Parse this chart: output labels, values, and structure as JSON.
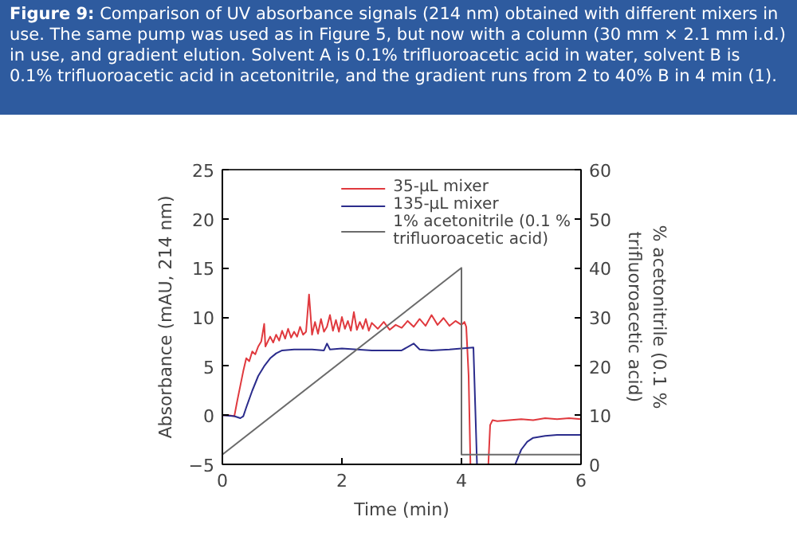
{
  "chart_data": {
    "type": "line",
    "title": "Figure 9: Comparison of UV absorbance signals (214 nm) obtained with different mixers in use. The same pump was used as in Figure 5, but now with a column (30 mm × 2.1 mm i.d.) in use, and gradient elution. Solvent A is 0.1% trifluoroacetic acid in water, solvent B is 0.1% trifluoroacetic acid in acetonitrile, and the gradient runs from 2 to 40% B in 4 min (1).",
    "xlabel": "Time (min)",
    "ylabel": "Absorbance (mAU, 214 nm)",
    "y2label": "% acetonitrile (0.1 %\ntrifluoroacetic acid)",
    "xlim": [
      0,
      6
    ],
    "xticks": [
      0,
      2,
      4,
      6
    ],
    "ylim": [
      -5,
      25
    ],
    "yticks": [
      -5,
      0,
      5,
      10,
      15,
      20,
      25
    ],
    "y2lim": [
      0,
      60
    ],
    "y2ticks": [
      0,
      10,
      20,
      30,
      40,
      50,
      60
    ],
    "grid": false,
    "legend": "top right",
    "line_style": "solid",
    "series": [
      {
        "name": "35-μL mixer",
        "color": "#e0393e",
        "x": [
          0,
          0.1,
          0.2,
          0.25,
          0.3,
          0.35,
          0.4,
          0.45,
          0.5,
          0.55,
          0.6,
          0.65,
          0.7,
          0.72,
          0.8,
          0.85,
          0.9,
          0.95,
          1.0,
          1.05,
          1.1,
          1.15,
          1.2,
          1.25,
          1.3,
          1.35,
          1.4,
          1.45,
          1.5,
          1.55,
          1.6,
          1.65,
          1.7,
          1.75,
          1.8,
          1.85,
          1.9,
          1.95,
          2.0,
          2.05,
          2.1,
          2.15,
          2.2,
          2.25,
          2.3,
          2.35,
          2.4,
          2.45,
          2.5,
          2.6,
          2.7,
          2.8,
          2.9,
          3.0,
          3.1,
          3.2,
          3.3,
          3.4,
          3.5,
          3.6,
          3.7,
          3.8,
          3.9,
          4.0,
          4.05,
          4.08,
          4.12,
          4.15,
          4.45,
          4.48,
          4.52,
          4.6,
          4.8,
          5.0,
          5.2,
          5.4,
          5.6,
          5.8,
          6.0
        ],
        "values": [
          0,
          0,
          -0.1,
          1.5,
          3,
          4.5,
          5.8,
          5.5,
          6.5,
          6.2,
          7,
          7.5,
          9.3,
          7,
          8,
          7.4,
          8.2,
          7.6,
          8.6,
          7.8,
          8.8,
          7.9,
          8.5,
          8,
          9,
          8.2,
          8.5,
          12.3,
          8.2,
          9.5,
          8.3,
          9.8,
          8.5,
          9,
          10.2,
          8.6,
          9.7,
          8.5,
          10,
          8.8,
          9.6,
          8.6,
          10.5,
          8.7,
          9.5,
          8.8,
          9.8,
          8.6,
          9.4,
          8.8,
          9.5,
          8.7,
          9.2,
          8.9,
          9.6,
          9,
          9.8,
          9.1,
          10.2,
          9.2,
          9.9,
          9.1,
          9.6,
          9.2,
          9.5,
          9,
          4,
          -5,
          -5,
          -1,
          -0.5,
          -0.6,
          -0.5,
          -0.4,
          -0.5,
          -0.3,
          -0.4,
          -0.3,
          -0.4
        ]
      },
      {
        "name": "135-μL mixer",
        "color": "#2b2c8c",
        "x": [
          0,
          0.2,
          0.3,
          0.35,
          0.4,
          0.5,
          0.6,
          0.7,
          0.8,
          0.9,
          1.0,
          1.2,
          1.5,
          1.7,
          1.75,
          1.8,
          2.0,
          2.5,
          3.0,
          3.2,
          3.3,
          3.5,
          3.8,
          4.0,
          4.2,
          4.22,
          4.26,
          4.9,
          5.0,
          5.1,
          5.2,
          5.4,
          5.6,
          6.0
        ],
        "values": [
          0,
          -0.1,
          -0.3,
          -0.1,
          0.8,
          2.5,
          4,
          5,
          5.8,
          6.3,
          6.6,
          6.7,
          6.7,
          6.6,
          7.3,
          6.7,
          6.8,
          6.6,
          6.6,
          7.3,
          6.7,
          6.6,
          6.7,
          6.8,
          6.9,
          3,
          -5,
          -5,
          -3.5,
          -2.7,
          -2.3,
          -2.1,
          -2,
          -2
        ]
      },
      {
        "name": "1% acetonitrile (0.1 %\ntrifluoroacetic acid)",
        "color": "#6b6b6b",
        "axis": "y2",
        "x": [
          0,
          4,
          4,
          6
        ],
        "values": [
          2,
          40,
          2,
          2
        ]
      }
    ]
  }
}
